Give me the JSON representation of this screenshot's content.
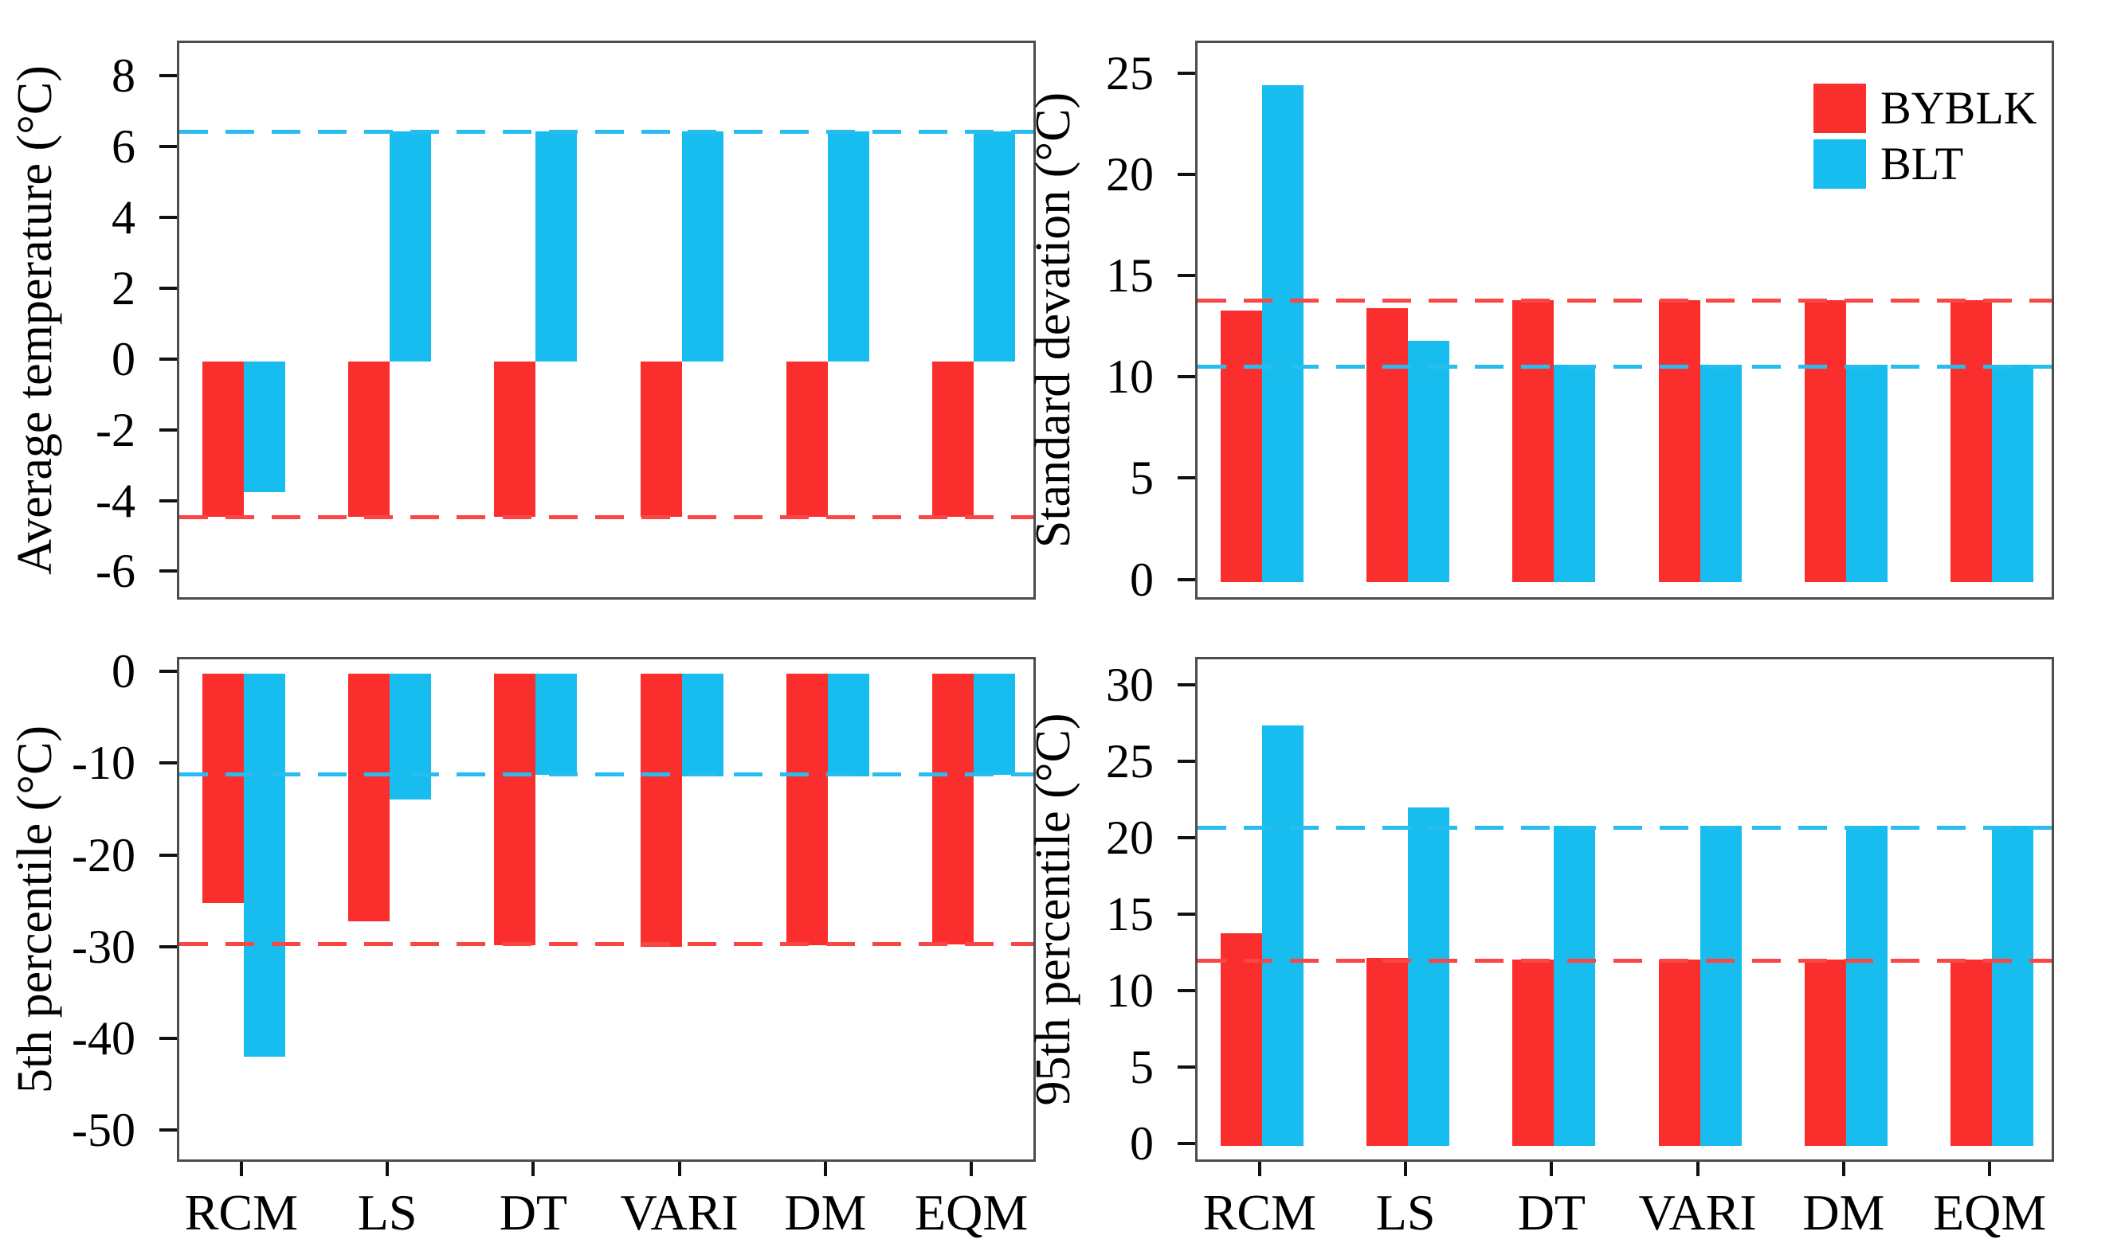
{
  "figure": {
    "background": "#ffffff",
    "box_border_color": "#4c4c4c",
    "tick_color": "#111111",
    "series_colors": {
      "BYBLK": "#fb2e2e",
      "BLT": "#18bdf0"
    },
    "dash_colors": {
      "BYBLK": "#fb4646",
      "BLT": "#29bcee"
    }
  },
  "legend": {
    "position": "top-right-of-standard-deviation-panel",
    "entries": [
      {
        "label": "BYBLK",
        "color": "#fb2e2e"
      },
      {
        "label": "BLT",
        "color": "#18bdf0"
      }
    ]
  },
  "chart_data": [
    {
      "type": "bar",
      "id": "average-temperature",
      "title": "",
      "xlabel": "",
      "ylabel": "Average temperature (°C)",
      "grid": "off",
      "yticks": [
        8,
        6,
        4,
        2,
        0,
        -2,
        -4,
        -6
      ],
      "ylim": [
        -6.8,
        9.0
      ],
      "categories": [
        "RCM",
        "LS",
        "DT",
        "VARI",
        "DM",
        "EQM"
      ],
      "show_x_labels": false,
      "series": [
        {
          "name": "BYBLK",
          "values": [
            -4.4,
            -4.4,
            -4.4,
            -4.4,
            -4.4,
            -4.4
          ]
        },
        {
          "name": "BLT",
          "values": [
            -3.7,
            6.5,
            6.5,
            6.5,
            6.5,
            6.5
          ]
        }
      ],
      "ref_lines": [
        {
          "series": "BLT",
          "value": 6.5
        },
        {
          "series": "BYBLK",
          "value": -4.4
        }
      ]
    },
    {
      "type": "bar",
      "id": "standard-deviation",
      "title": "",
      "xlabel": "",
      "ylabel": "Standard devation (°C)",
      "grid": "off",
      "yticks": [
        25,
        20,
        15,
        10,
        5,
        0
      ],
      "ylim": [
        -1.0,
        26.6
      ],
      "categories": [
        "RCM",
        "LS",
        "DT",
        "VARI",
        "DM",
        "EQM"
      ],
      "show_x_labels": false,
      "series": [
        {
          "name": "BYBLK",
          "values": [
            13.4,
            13.5,
            13.9,
            13.9,
            13.9,
            13.9
          ]
        },
        {
          "name": "BLT",
          "values": [
            24.5,
            11.9,
            10.7,
            10.7,
            10.7,
            10.7
          ]
        }
      ],
      "ref_lines": [
        {
          "series": "BYBLK",
          "value": 13.9
        },
        {
          "series": "BLT",
          "value": 10.6
        }
      ]
    },
    {
      "type": "bar",
      "id": "5th-percentile",
      "title": "",
      "xlabel": "",
      "ylabel": "5th percentile (°C)",
      "grid": "off",
      "yticks": [
        0,
        -10,
        -20,
        -30,
        -40,
        -50
      ],
      "ylim": [
        -53.5,
        1.6
      ],
      "categories": [
        "RCM",
        "LS",
        "DT",
        "VARI",
        "DM",
        "EQM"
      ],
      "show_x_labels": true,
      "series": [
        {
          "name": "BYBLK",
          "values": [
            -25.0,
            -27.0,
            -29.6,
            -29.8,
            -29.6,
            -29.5
          ]
        },
        {
          "name": "BLT",
          "values": [
            -41.8,
            -13.7,
            -11.0,
            -11.2,
            -11.2,
            -11.0
          ]
        }
      ],
      "ref_lines": [
        {
          "series": "BLT",
          "value": -11.0
        },
        {
          "series": "BYBLK",
          "value": -29.5
        }
      ]
    },
    {
      "type": "bar",
      "id": "95th-percentile",
      "title": "",
      "xlabel": "",
      "ylabel": "95th percentile (°C)",
      "grid": "off",
      "yticks": [
        30,
        25,
        20,
        15,
        10,
        5,
        0
      ],
      "ylim": [
        -1.2,
        31.8
      ],
      "categories": [
        "RCM",
        "LS",
        "DT",
        "VARI",
        "DM",
        "EQM"
      ],
      "show_x_labels": true,
      "series": [
        {
          "name": "BYBLK",
          "values": [
            13.9,
            12.3,
            12.2,
            12.2,
            12.2,
            12.2
          ]
        },
        {
          "name": "BLT",
          "values": [
            27.5,
            22.1,
            20.9,
            20.9,
            20.9,
            20.9
          ]
        }
      ],
      "ref_lines": [
        {
          "series": "BLT",
          "value": 20.8
        },
        {
          "series": "BYBLK",
          "value": 12.1
        }
      ]
    }
  ]
}
